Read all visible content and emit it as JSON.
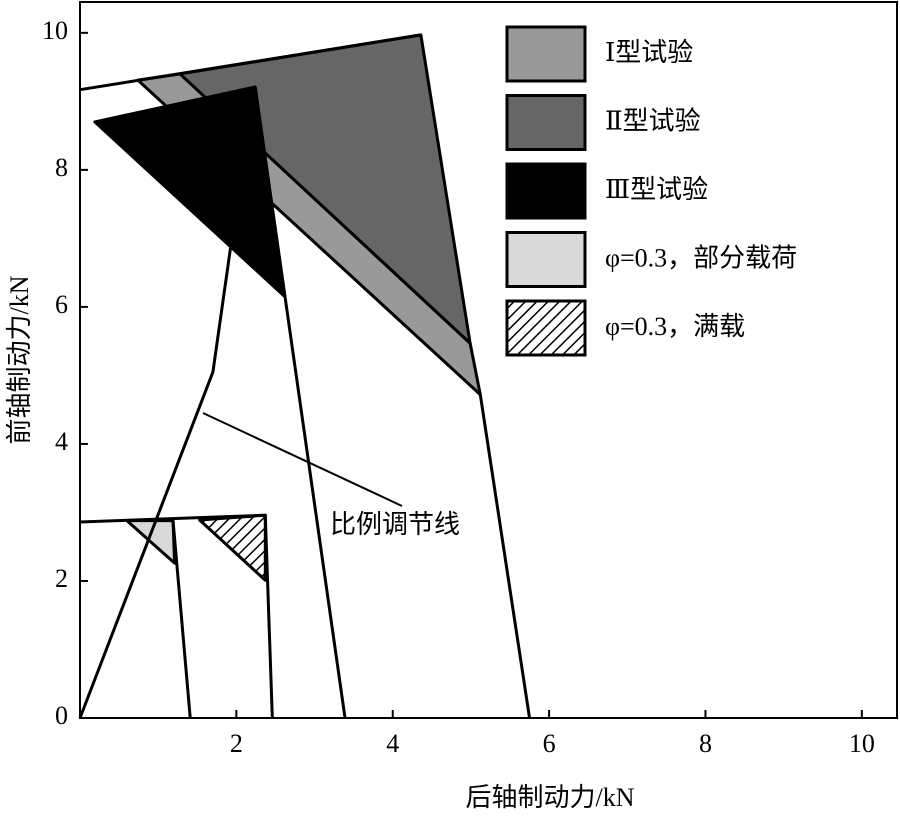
{
  "chart_data": {
    "type": "polygon",
    "xlabel": "后轴制动力/kN",
    "ylabel": "前轴制动力/kN",
    "xlim": [
      0,
      10.45
    ],
    "ylim": [
      0,
      10.45
    ],
    "xticks": [
      2,
      4,
      6,
      8,
      10
    ],
    "yticks": [
      0,
      2,
      4,
      6,
      8,
      10
    ],
    "series": [
      {
        "name": "Ⅰ型试验",
        "color": "#999999",
        "x": [
          0.74,
          1.28,
          4.99,
          5.12
        ],
        "y": [
          9.31,
          9.4,
          5.47,
          4.72
        ]
      },
      {
        "name": "Ⅱ型试验",
        "color": "#666666",
        "x": [
          1.28,
          4.36,
          4.99
        ],
        "y": [
          9.4,
          9.97,
          5.47
        ]
      },
      {
        "name": "Ⅲ型试验",
        "color": "#000000",
        "x": [
          0.19,
          2.24,
          2.62
        ],
        "y": [
          8.7,
          9.21,
          6.15
        ]
      },
      {
        "name": "φ=0.3，部分载荷",
        "color": "#d9d9d9",
        "x": [
          0.6,
          1.19,
          1.21
        ],
        "y": [
          2.88,
          2.88,
          2.26
        ]
      },
      {
        "name": "φ=0.3，满载",
        "color": "#ffffff",
        "hatch": true,
        "x": [
          1.53,
          2.37,
          2.37
        ],
        "y": [
          2.89,
          2.96,
          2.01
        ]
      }
    ],
    "lines": [
      {
        "x": [
          0,
          4.36
        ],
        "y": [
          9.17,
          9.97
        ]
      },
      {
        "x": [
          5.12,
          5.75
        ],
        "y": [
          4.72,
          0
        ]
      },
      {
        "x": [
          2.24,
          3.39
        ],
        "y": [
          9.21,
          0
        ]
      },
      {
        "x": [
          0,
          1.7,
          1.94
        ],
        "y": [
          0,
          5.05,
          6.98
        ]
      },
      {
        "x": [
          0,
          2.37
        ],
        "y": [
          2.86,
          2.96
        ]
      },
      {
        "x": [
          1.19,
          1.41
        ],
        "y": [
          2.88,
          0
        ]
      },
      {
        "x": [
          2.37,
          2.46
        ],
        "y": [
          2.96,
          0
        ]
      }
    ],
    "annotations": [
      {
        "text": "比例调节线"
      }
    ]
  }
}
